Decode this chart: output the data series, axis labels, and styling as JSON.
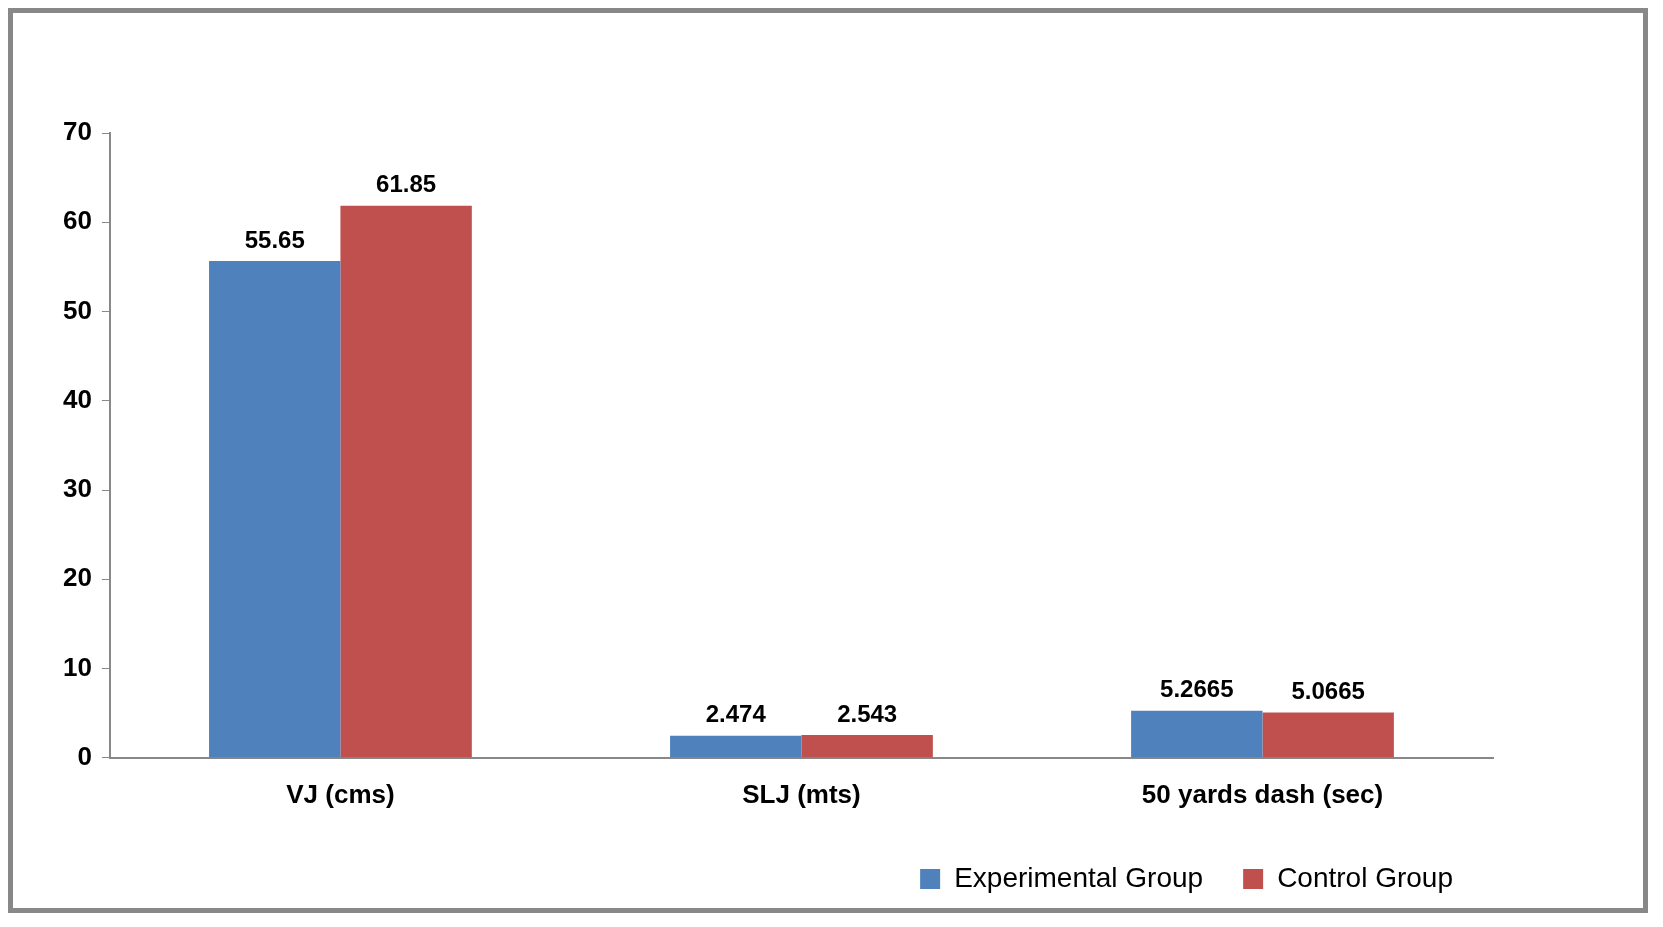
{
  "chart_data": {
    "type": "bar",
    "categories": [
      "VJ (cms)",
      "SLJ (mts)",
      "50 yards dash (sec)"
    ],
    "series": [
      {
        "name": "Experimental Group",
        "color": "#4f81bd",
        "values": [
          55.65,
          2.474,
          5.2665
        ]
      },
      {
        "name": "Control Group",
        "color": "#c0504d",
        "values": [
          61.85,
          2.543,
          5.0665
        ]
      }
    ],
    "ylim": [
      0,
      70
    ],
    "yticks": [
      0,
      10,
      20,
      30,
      40,
      50,
      60,
      70
    ],
    "grid": false,
    "legend": "bottom right",
    "data_labels": true
  }
}
